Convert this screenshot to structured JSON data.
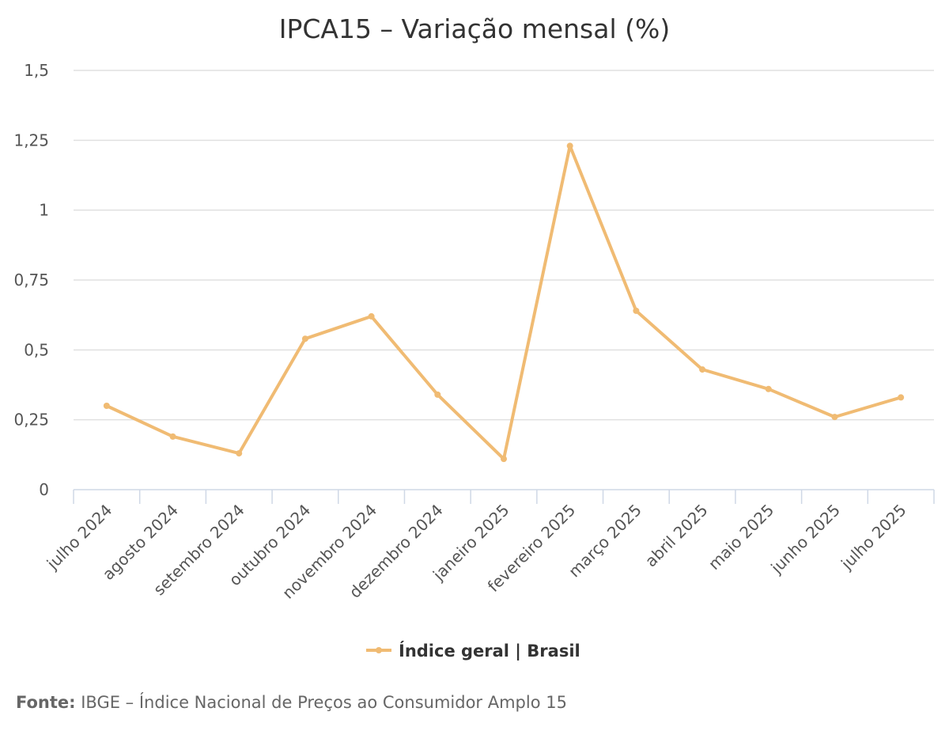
{
  "chart_data": {
    "type": "line",
    "title": "IPCA15 – Variação mensal (%)",
    "categories": [
      "julho 2024",
      "agosto 2024",
      "setembro 2024",
      "outubro 2024",
      "novembro 2024",
      "dezembro 2024",
      "janeiro 2025",
      "fevereiro 2025",
      "março 2025",
      "abril 2025",
      "maio 2025",
      "junho 2025",
      "julho 2025"
    ],
    "series": [
      {
        "name": "Índice geral | Brasil",
        "color": "#f0bb73",
        "values": [
          0.3,
          0.19,
          0.13,
          0.54,
          0.62,
          0.34,
          0.11,
          1.23,
          0.64,
          0.43,
          0.36,
          0.26,
          0.33
        ]
      }
    ],
    "ylim": [
      0,
      1.5
    ],
    "yticks": [
      0,
      0.25,
      0.5,
      0.75,
      1,
      1.25,
      1.5
    ],
    "ytick_labels": [
      "0",
      "0,25",
      "0,5",
      "0,75",
      "1",
      "1,25",
      "1,5"
    ],
    "xlabel": "",
    "ylabel": "",
    "grid": true,
    "legend_position": "bottom-center"
  },
  "source": {
    "label": "Fonte:",
    "text": " IBGE – Índice Nacional de Preços ao Consumidor Amplo 15"
  }
}
